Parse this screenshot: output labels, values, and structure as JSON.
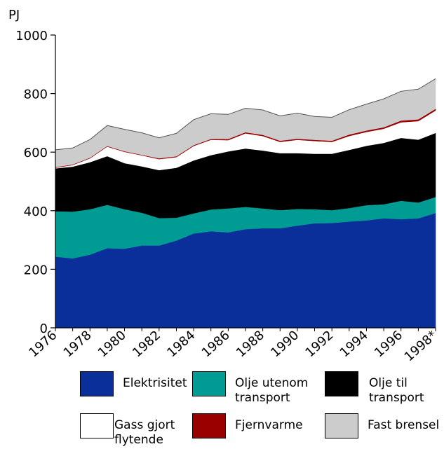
{
  "chart_data": {
    "type": "area",
    "stacked": true,
    "ylabel": "PJ",
    "ylim": [
      0,
      1000
    ],
    "yticks": [
      0,
      200,
      400,
      600,
      800,
      1000
    ],
    "xlim": [
      1976,
      1998
    ],
    "xticks": [
      "1976",
      "1978",
      "1980",
      "1982",
      "1984",
      "1986",
      "1988",
      "1990",
      "1992",
      "1994",
      "1996",
      "1998*"
    ],
    "x": [
      1976,
      1977,
      1978,
      1979,
      1980,
      1981,
      1982,
      1983,
      1984,
      1985,
      1986,
      1987,
      1988,
      1989,
      1990,
      1991,
      1992,
      1993,
      1994,
      1995,
      1996,
      1997,
      1998
    ],
    "series": [
      {
        "name": "Elektrisitet",
        "color": "#0a2f9b",
        "values": [
          243,
          237,
          250,
          272,
          270,
          281,
          281,
          298,
          322,
          330,
          326,
          337,
          340,
          340,
          349,
          357,
          358,
          363,
          367,
          374,
          371,
          374,
          392
        ]
      },
      {
        "name": "Olje utenom transport",
        "color": "#009c94",
        "values": [
          155,
          160,
          155,
          148,
          135,
          112,
          94,
          78,
          69,
          74,
          82,
          76,
          68,
          62,
          57,
          48,
          44,
          46,
          52,
          48,
          63,
          54,
          55
        ]
      },
      {
        "name": "Olje til transport",
        "color": "#000000",
        "values": [
          146,
          153,
          160,
          166,
          157,
          158,
          163,
          170,
          180,
          185,
          194,
          199,
          197,
          194,
          190,
          189,
          192,
          198,
          202,
          209,
          214,
          214,
          218
        ]
      },
      {
        "name": "Gass gjort flytende",
        "color": "#ffffff",
        "values": [
          3,
          6,
          14,
          33,
          39,
          38,
          38,
          37,
          50,
          53,
          39,
          52,
          50,
          39,
          46,
          44,
          41,
          48,
          48,
          49,
          54,
          64,
          77
        ]
      },
      {
        "name": "Fjernvarme",
        "color": "#9b0000",
        "values": [
          2,
          2,
          2,
          2,
          2,
          2,
          3,
          3,
          3,
          3,
          4,
          4,
          4,
          4,
          4,
          4,
          4,
          5,
          5,
          5,
          6,
          6,
          6
        ]
      },
      {
        "name": "Fast brensel",
        "color": "#cccccc",
        "values": [
          59,
          56,
          62,
          70,
          75,
          75,
          70,
          78,
          87,
          86,
          84,
          82,
          85,
          85,
          87,
          80,
          80,
          85,
          90,
          97,
          100,
          103,
          103
        ]
      }
    ],
    "legend": [
      {
        "label": "Elektrisitet",
        "color": "#0a2f9b"
      },
      {
        "label": "Olje utenom\ntransport",
        "color": "#009c94"
      },
      {
        "label": "Olje til\ntransport",
        "color": "#000000"
      },
      {
        "label": "Gass gjort\nflytende",
        "color": "#ffffff"
      },
      {
        "label": "Fjernvarme",
        "color": "#9b0000"
      },
      {
        "label": "Fast brensel",
        "color": "#cccccc"
      }
    ],
    "legend_position": "bottom",
    "grid": false
  }
}
